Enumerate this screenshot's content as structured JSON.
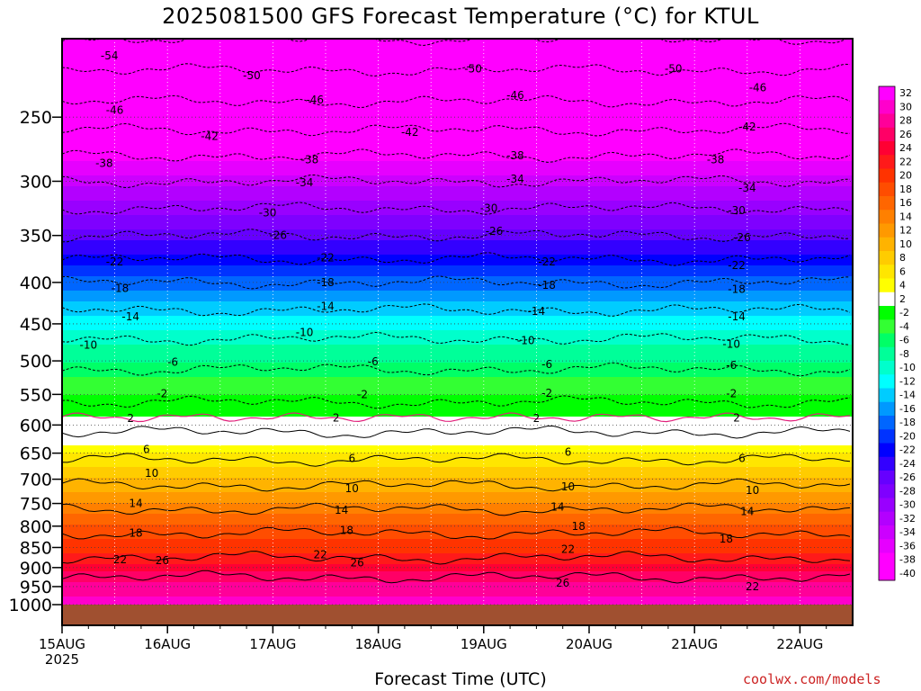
{
  "title": "2025081500 GFS Forecast Temperature (°C) for KTUL",
  "xlabel": "Forecast Time (UTC)",
  "watermark": "coolwx.com/models",
  "chart_data": {
    "type": "heatmap",
    "title": "2025081500 GFS Forecast Temperature (°C) for KTUL",
    "xlabel": "Forecast Time (UTC)",
    "ylabel": "",
    "x_ticks": [
      "15AUG",
      "16AUG",
      "17AUG",
      "18AUG",
      "19AUG",
      "20AUG",
      "21AUG",
      "22AUG"
    ],
    "x_tick_year": "2025",
    "xlim_days": [
      0,
      7.5
    ],
    "y_ticks": [
      250,
      300,
      350,
      400,
      450,
      500,
      550,
      600,
      650,
      700,
      750,
      800,
      850,
      900,
      950,
      1000
    ],
    "y_scale": "log",
    "ylim": [
      1000,
      200
    ],
    "colorbar": {
      "labels": [
        32,
        30,
        28,
        26,
        24,
        22,
        20,
        18,
        16,
        14,
        12,
        10,
        8,
        6,
        4,
        2,
        -2,
        -4,
        -6,
        -8,
        -10,
        -12,
        -14,
        -16,
        -18,
        -20,
        -22,
        -24,
        -26,
        -28,
        -30,
        -32,
        -34,
        -36,
        -38,
        -40
      ],
      "colors": [
        "#ff00ff",
        "#ff00cc",
        "#ff0099",
        "#ff0066",
        "#ff0033",
        "#ff1a1a",
        "#ff3300",
        "#ff4d00",
        "#ff6600",
        "#ff8000",
        "#ff9900",
        "#ffb300",
        "#ffcc00",
        "#ffe600",
        "#ffff00",
        "#ffffff",
        "#00ff00",
        "#33ff33",
        "#00ff66",
        "#00ff99",
        "#00ffcc",
        "#00ffff",
        "#00ccff",
        "#0099ff",
        "#0066ff",
        "#0033ff",
        "#0000ff",
        "#3300ff",
        "#6600ff",
        "#7f00ff",
        "#9900ff",
        "#b300ff",
        "#cc00ff",
        "#e600ff",
        "#ff00ff",
        "#ff00ff"
      ]
    },
    "profile": {
      "pressure": [
        1000,
        950,
        900,
        850,
        800,
        750,
        700,
        650,
        600,
        550,
        500,
        450,
        400,
        350,
        300,
        250,
        200
      ],
      "temperature": [
        30,
        28,
        24,
        20,
        17,
        13,
        9,
        5,
        1,
        -3,
        -7,
        -12,
        -18,
        -26,
        -34,
        -44,
        -54
      ]
    },
    "contour_labels": [
      {
        "value": -54,
        "day": 0.45,
        "p": 210
      },
      {
        "value": -50,
        "day": 1.8,
        "p": 222
      },
      {
        "value": -50,
        "day": 3.9,
        "p": 218
      },
      {
        "value": -50,
        "day": 5.8,
        "p": 218
      },
      {
        "value": -46,
        "day": 0.5,
        "p": 245
      },
      {
        "value": -46,
        "day": 2.4,
        "p": 238
      },
      {
        "value": -46,
        "day": 4.3,
        "p": 235
      },
      {
        "value": -46,
        "day": 6.6,
        "p": 230
      },
      {
        "value": -42,
        "day": 1.4,
        "p": 264
      },
      {
        "value": -42,
        "day": 3.3,
        "p": 261
      },
      {
        "value": -42,
        "day": 6.5,
        "p": 257
      },
      {
        "value": -38,
        "day": 0.4,
        "p": 285
      },
      {
        "value": -38,
        "day": 2.35,
        "p": 282
      },
      {
        "value": -38,
        "day": 4.3,
        "p": 279
      },
      {
        "value": -38,
        "day": 6.2,
        "p": 282
      },
      {
        "value": -34,
        "day": 2.3,
        "p": 301
      },
      {
        "value": -34,
        "day": 4.3,
        "p": 298
      },
      {
        "value": -34,
        "day": 6.5,
        "p": 306
      },
      {
        "value": -30,
        "day": 1.95,
        "p": 328
      },
      {
        "value": -30,
        "day": 4.05,
        "p": 324
      },
      {
        "value": -30,
        "day": 6.4,
        "p": 326
      },
      {
        "value": -26,
        "day": 2.05,
        "p": 350
      },
      {
        "value": -26,
        "day": 4.1,
        "p": 346
      },
      {
        "value": -26,
        "day": 6.45,
        "p": 352
      },
      {
        "value": -22,
        "day": 0.5,
        "p": 377
      },
      {
        "value": -22,
        "day": 2.5,
        "p": 373
      },
      {
        "value": -22,
        "day": 4.6,
        "p": 377
      },
      {
        "value": -22,
        "day": 6.4,
        "p": 381
      },
      {
        "value": -18,
        "day": 0.55,
        "p": 407
      },
      {
        "value": -18,
        "day": 2.5,
        "p": 400
      },
      {
        "value": -18,
        "day": 4.6,
        "p": 403
      },
      {
        "value": -18,
        "day": 6.4,
        "p": 408
      },
      {
        "value": -14,
        "day": 0.65,
        "p": 441
      },
      {
        "value": -14,
        "day": 2.5,
        "p": 428
      },
      {
        "value": -14,
        "day": 4.5,
        "p": 434
      },
      {
        "value": -14,
        "day": 6.4,
        "p": 441
      },
      {
        "value": -10,
        "day": 0.25,
        "p": 478
      },
      {
        "value": -10,
        "day": 2.3,
        "p": 461
      },
      {
        "value": -10,
        "day": 4.4,
        "p": 472
      },
      {
        "value": -10,
        "day": 6.35,
        "p": 477
      },
      {
        "value": -6,
        "day": 1.05,
        "p": 502
      },
      {
        "value": -6,
        "day": 2.95,
        "p": 501
      },
      {
        "value": -6,
        "day": 4.6,
        "p": 505
      },
      {
        "value": -6,
        "day": 6.35,
        "p": 506
      },
      {
        "value": -2,
        "day": 0.95,
        "p": 549
      },
      {
        "value": -2,
        "day": 2.85,
        "p": 550
      },
      {
        "value": -2,
        "day": 4.6,
        "p": 548
      },
      {
        "value": -2,
        "day": 6.35,
        "p": 549
      },
      {
        "value": 2,
        "day": 0.65,
        "p": 589
      },
      {
        "value": 2,
        "day": 2.6,
        "p": 588
      },
      {
        "value": 2,
        "day": 4.5,
        "p": 589
      },
      {
        "value": 2,
        "day": 6.4,
        "p": 588
      },
      {
        "value": 6,
        "day": 0.8,
        "p": 643
      },
      {
        "value": 6,
        "day": 2.75,
        "p": 660
      },
      {
        "value": 6,
        "day": 4.8,
        "p": 648
      },
      {
        "value": 6,
        "day": 6.45,
        "p": 660
      },
      {
        "value": 10,
        "day": 0.85,
        "p": 688
      },
      {
        "value": 10,
        "day": 2.75,
        "p": 719
      },
      {
        "value": 10,
        "day": 4.8,
        "p": 715
      },
      {
        "value": 10,
        "day": 6.55,
        "p": 723
      },
      {
        "value": 14,
        "day": 0.7,
        "p": 750
      },
      {
        "value": 14,
        "day": 2.65,
        "p": 764
      },
      {
        "value": 14,
        "day": 4.7,
        "p": 758
      },
      {
        "value": 14,
        "day": 6.5,
        "p": 767
      },
      {
        "value": 18,
        "day": 0.7,
        "p": 816
      },
      {
        "value": 18,
        "day": 2.7,
        "p": 810
      },
      {
        "value": 18,
        "day": 4.9,
        "p": 800
      },
      {
        "value": 18,
        "day": 6.3,
        "p": 830
      },
      {
        "value": 22,
        "day": 0.55,
        "p": 880
      },
      {
        "value": 22,
        "day": 2.45,
        "p": 868
      },
      {
        "value": 22,
        "day": 4.8,
        "p": 854
      },
      {
        "value": 22,
        "day": 6.55,
        "p": 950
      },
      {
        "value": 26,
        "day": 0.95,
        "p": 882
      },
      {
        "value": 26,
        "day": 2.8,
        "p": 888
      },
      {
        "value": 26,
        "day": 4.75,
        "p": 940
      }
    ]
  }
}
